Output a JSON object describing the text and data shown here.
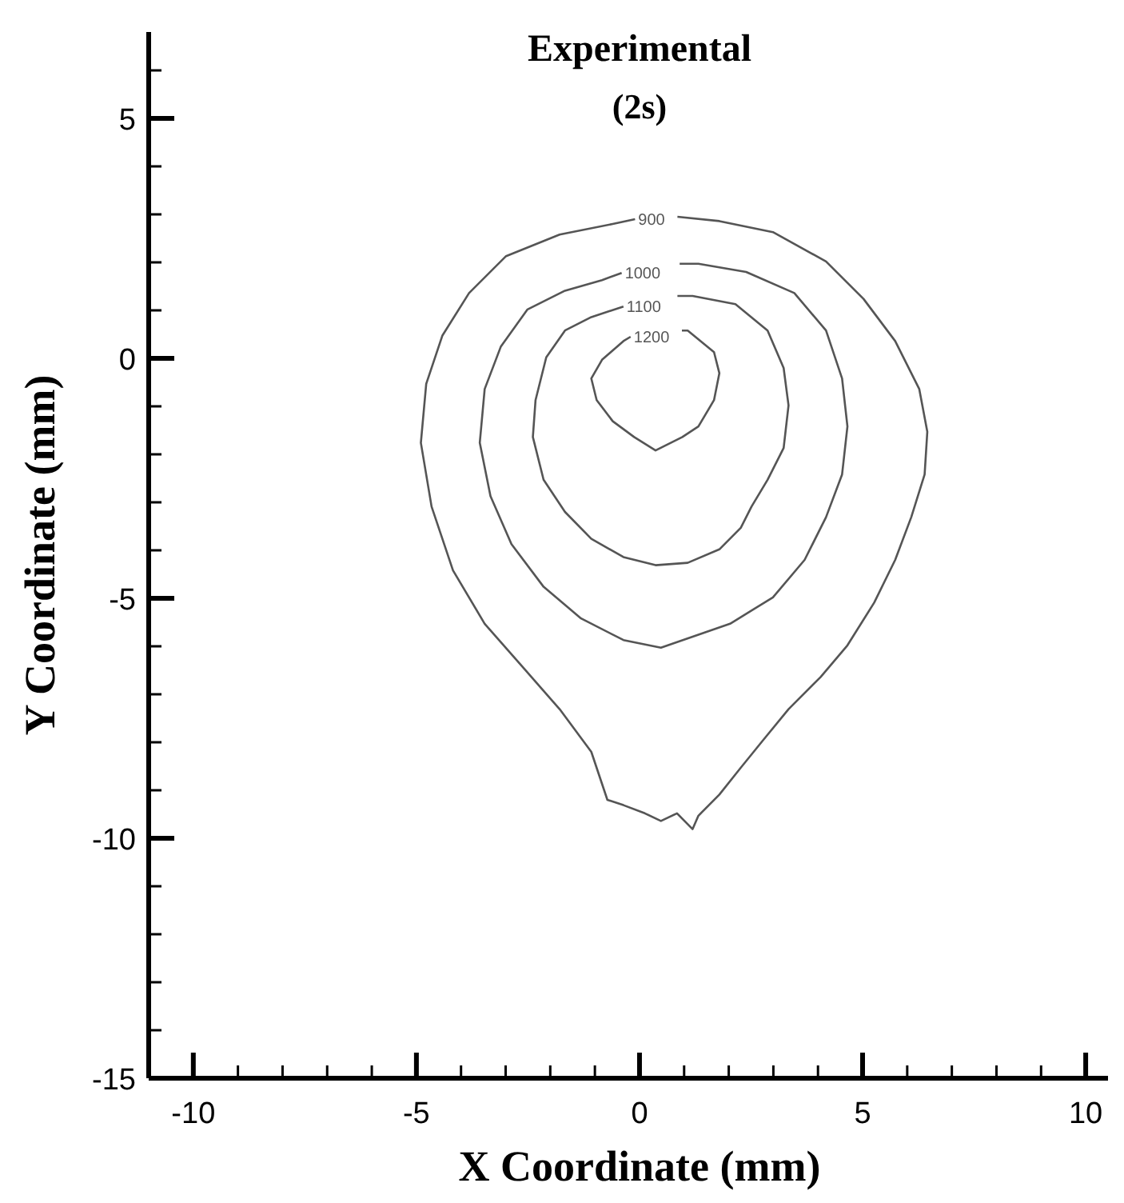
{
  "chart_data": {
    "type": "line",
    "title": "Experimental",
    "subtitle": "(2s)",
    "xlabel": "X Coordinate (mm)",
    "ylabel": "Y Coordinate (mm)",
    "xlim": [
      -11,
      10.5
    ],
    "ylim": [
      -15,
      6.8
    ],
    "xticks": [
      {
        "value": -11,
        "label": null
      },
      -10,
      {
        "value": -9,
        "label": null
      },
      {
        "value": -8,
        "label": null
      },
      {
        "value": -7,
        "label": null
      },
      {
        "value": -6,
        "label": null
      },
      -5,
      {
        "value": -4,
        "label": null
      },
      {
        "value": -3,
        "label": null
      },
      {
        "value": -2,
        "label": null
      },
      {
        "value": -1,
        "label": null
      },
      0,
      {
        "value": 1,
        "label": null
      },
      {
        "value": 2,
        "label": null
      },
      {
        "value": 3,
        "label": null
      },
      {
        "value": 4,
        "label": null
      },
      5,
      {
        "value": 6,
        "label": null
      },
      {
        "value": 7,
        "label": null
      },
      {
        "value": 8,
        "label": null
      },
      {
        "value": 9,
        "label": null
      },
      10
    ],
    "yticks": [
      -15,
      {
        "value": -14,
        "label": null
      },
      {
        "value": -13,
        "label": null
      },
      {
        "value": -12,
        "label": null
      },
      {
        "value": -11,
        "label": null
      },
      -10,
      {
        "value": -9,
        "label": null
      },
      {
        "value": -8,
        "label": null
      },
      {
        "value": -7,
        "label": null
      },
      {
        "value": -6,
        "label": null
      },
      -5,
      {
        "value": -4,
        "label": null
      },
      {
        "value": -3,
        "label": null
      },
      {
        "value": -2,
        "label": null
      },
      {
        "value": -1,
        "label": null
      },
      0,
      {
        "value": 1,
        "label": null
      },
      {
        "value": 2,
        "label": null
      },
      {
        "value": 3,
        "label": null
      },
      {
        "value": 4,
        "label": null
      },
      5,
      {
        "value": 6,
        "label": null
      }
    ],
    "series": [
      {
        "name": "900",
        "color": "#555555",
        "x": [
          0.85,
          1.79,
          2.99,
          4.18,
          5.02,
          5.73,
          6.27,
          6.45,
          6.39,
          6.09,
          5.73,
          5.26,
          4.66,
          4.06,
          3.34,
          2.75,
          2.27,
          1.79,
          1.32,
          1.19,
          0.84,
          0.48,
          0.12,
          -0.36,
          -0.72,
          -1.08,
          -1.79,
          -2.63,
          -3.47,
          -4.18,
          -4.66,
          -4.9,
          -4.78,
          -4.42,
          -3.82,
          -2.99,
          -1.79,
          -0.6,
          -0.1
        ],
        "values": [
          2.95,
          2.86,
          2.63,
          2.02,
          1.24,
          0.36,
          -0.64,
          -1.53,
          -2.42,
          -3.31,
          -4.2,
          -5.09,
          -5.98,
          -6.64,
          -7.31,
          -7.98,
          -8.53,
          -9.09,
          -9.53,
          -9.81,
          -9.48,
          -9.64,
          -9.48,
          -9.31,
          -9.2,
          -8.2,
          -7.31,
          -6.42,
          -5.53,
          -4.42,
          -3.09,
          -1.76,
          -0.53,
          0.47,
          1.36,
          2.13,
          2.58,
          2.8,
          2.9
        ]
      },
      {
        "name": "1000",
        "color": "#555555",
        "x": [
          0.9,
          1.32,
          2.39,
          3.47,
          4.18,
          4.54,
          4.66,
          4.54,
          4.18,
          3.7,
          2.99,
          2.03,
          1.32,
          0.48,
          -0.36,
          -1.31,
          -2.15,
          -2.87,
          -3.34,
          -3.58,
          -3.47,
          -3.11,
          -2.51,
          -1.67,
          -0.84,
          -0.4
        ],
        "values": [
          1.97,
          1.97,
          1.8,
          1.36,
          0.58,
          -0.42,
          -1.42,
          -2.42,
          -3.31,
          -4.2,
          -4.98,
          -5.53,
          -5.76,
          -6.03,
          -5.87,
          -5.42,
          -4.76,
          -3.87,
          -2.87,
          -1.76,
          -0.64,
          0.24,
          1.02,
          1.41,
          1.63,
          1.78
        ]
      },
      {
        "name": "1100",
        "color": "#555555",
        "x": [
          0.85,
          1.19,
          2.15,
          2.87,
          3.23,
          3.34,
          3.23,
          2.87,
          2.51,
          2.27,
          1.79,
          1.08,
          0.36,
          -0.36,
          -1.08,
          -1.67,
          -2.15,
          -2.39,
          -2.33,
          -2.09,
          -1.67,
          -1.08,
          -0.36
        ],
        "values": [
          1.3,
          1.3,
          1.13,
          0.58,
          -0.2,
          -0.98,
          -1.87,
          -2.53,
          -3.09,
          -3.53,
          -3.98,
          -4.26,
          -4.31,
          -4.14,
          -3.76,
          -3.2,
          -2.53,
          -1.64,
          -0.87,
          0.02,
          0.58,
          0.86,
          1.08
        ]
      },
      {
        "name": "1200",
        "color": "#555555",
        "x": [
          0.95,
          1.08,
          1.67,
          1.79,
          1.67,
          1.32,
          0.96,
          0.36,
          -0.12,
          -0.6,
          -0.96,
          -1.08,
          -0.84,
          -0.36,
          -0.2
        ],
        "values": [
          0.58,
          0.58,
          0.13,
          -0.31,
          -0.87,
          -1.42,
          -1.64,
          -1.92,
          -1.64,
          -1.31,
          -0.87,
          -0.42,
          -0.03,
          0.36,
          0.45
        ]
      }
    ]
  }
}
